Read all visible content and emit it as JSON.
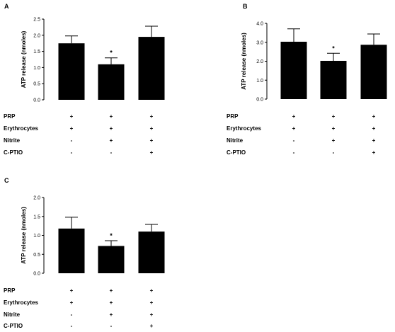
{
  "chart_data": [
    {
      "type": "bar",
      "panel_label": "A",
      "ylabel": "ATP release (nmoles)",
      "ylim": [
        0,
        2.5
      ],
      "yticks": [
        "0.0",
        "0.5",
        "1.0",
        "1.5",
        "2.0",
        "2.5"
      ],
      "values": [
        1.75,
        1.1,
        1.95
      ],
      "errors": [
        0.23,
        0.2,
        0.33
      ],
      "significance": [
        "",
        "*",
        ""
      ],
      "rows": [
        {
          "label": "PRP",
          "signs": [
            "+",
            "+",
            "+"
          ]
        },
        {
          "label": "Erythrocytes",
          "signs": [
            "+",
            "+",
            "+"
          ]
        },
        {
          "label": "Nitrite",
          "signs": [
            "-",
            "+",
            "+"
          ]
        },
        {
          "label": "C-PTIO",
          "signs": [
            "-",
            "-",
            "+"
          ]
        }
      ]
    },
    {
      "type": "bar",
      "panel_label": "B",
      "ylabel": "ATP release (nmoles)",
      "ylim": [
        0,
        4.0
      ],
      "yticks": [
        "0.0",
        "1.0",
        "2.0",
        "3.0",
        "4.0"
      ],
      "values": [
        3.03,
        2.02,
        2.87
      ],
      "errors": [
        0.68,
        0.4,
        0.57
      ],
      "significance": [
        "",
        "*",
        ""
      ],
      "rows": [
        {
          "label": "PRP",
          "signs": [
            "+",
            "+",
            "+"
          ]
        },
        {
          "label": "Erythrocytes",
          "signs": [
            "+",
            "+",
            "+"
          ]
        },
        {
          "label": "Nitrite",
          "signs": [
            "-",
            "+",
            "+"
          ]
        },
        {
          "label": "C-PTIO",
          "signs": [
            "-",
            "-",
            "+"
          ]
        }
      ]
    },
    {
      "type": "bar",
      "panel_label": "C",
      "ylabel": "ATP release (nmoles)",
      "ylim": [
        0,
        2.0
      ],
      "yticks": [
        "0.0",
        "0.5",
        "1.0",
        "1.5",
        "2.0"
      ],
      "values": [
        1.18,
        0.72,
        1.1
      ],
      "errors": [
        0.3,
        0.14,
        0.19
      ],
      "significance": [
        "",
        "*",
        ""
      ],
      "rows": [
        {
          "label": "PRP",
          "signs": [
            "+",
            "+",
            "+"
          ]
        },
        {
          "label": "Erythrocytes",
          "signs": [
            "+",
            "+",
            "+"
          ]
        },
        {
          "label": "Nitrite",
          "signs": [
            "-",
            "+",
            "+"
          ]
        },
        {
          "label": "C-PTIO",
          "signs": [
            "-",
            "-",
            "+"
          ]
        }
      ]
    }
  ],
  "colors": {
    "bar": "#000000",
    "axis": "#000000"
  }
}
